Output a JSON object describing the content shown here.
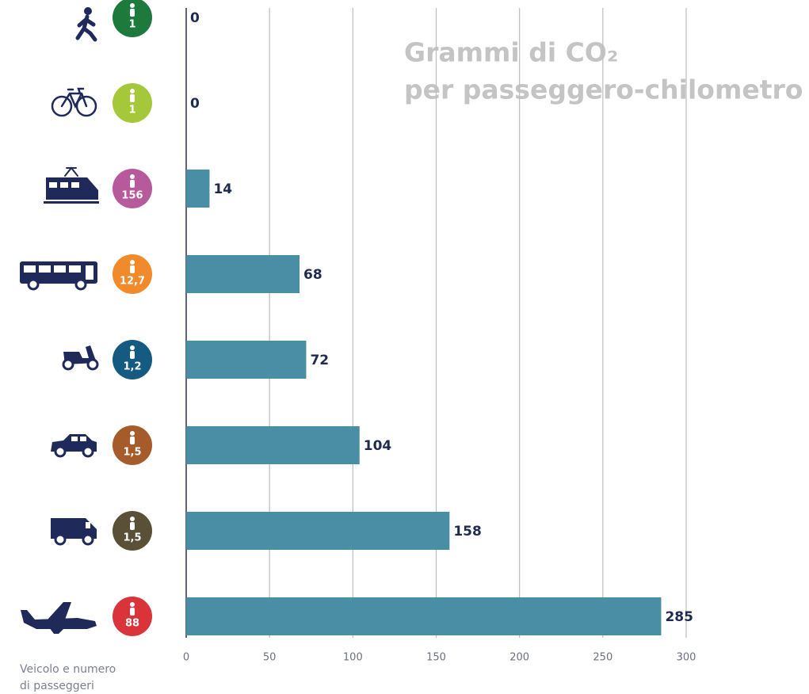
{
  "chart_data": {
    "type": "bar",
    "orientation": "horizontal",
    "title_lines": [
      "Grammi di CO₂",
      "per passeggero-chilometro"
    ],
    "row_label_lines": [
      "Veicolo e numero",
      "di passeggeri"
    ],
    "categories": [
      null,
      null,
      null,
      null,
      null,
      null,
      null,
      null
    ],
    "passengers": [
      "1",
      "1",
      "156",
      "12,7",
      "1,2",
      "1,5",
      "1,5",
      "88"
    ],
    "badge_colors": [
      "#1e7a3c",
      "#a5c73a",
      "#b65a9c",
      "#f08a2a",
      "#155a80",
      "#a55c2a",
      "#5a5038",
      "#d8343a"
    ],
    "values": [
      0,
      0,
      14,
      68,
      72,
      104,
      158,
      285
    ],
    "color": "#4a8ea6",
    "xlim": [
      0,
      300
    ],
    "xticks": [
      0,
      50,
      100,
      150,
      200,
      250,
      300
    ],
    "grid": true
  }
}
